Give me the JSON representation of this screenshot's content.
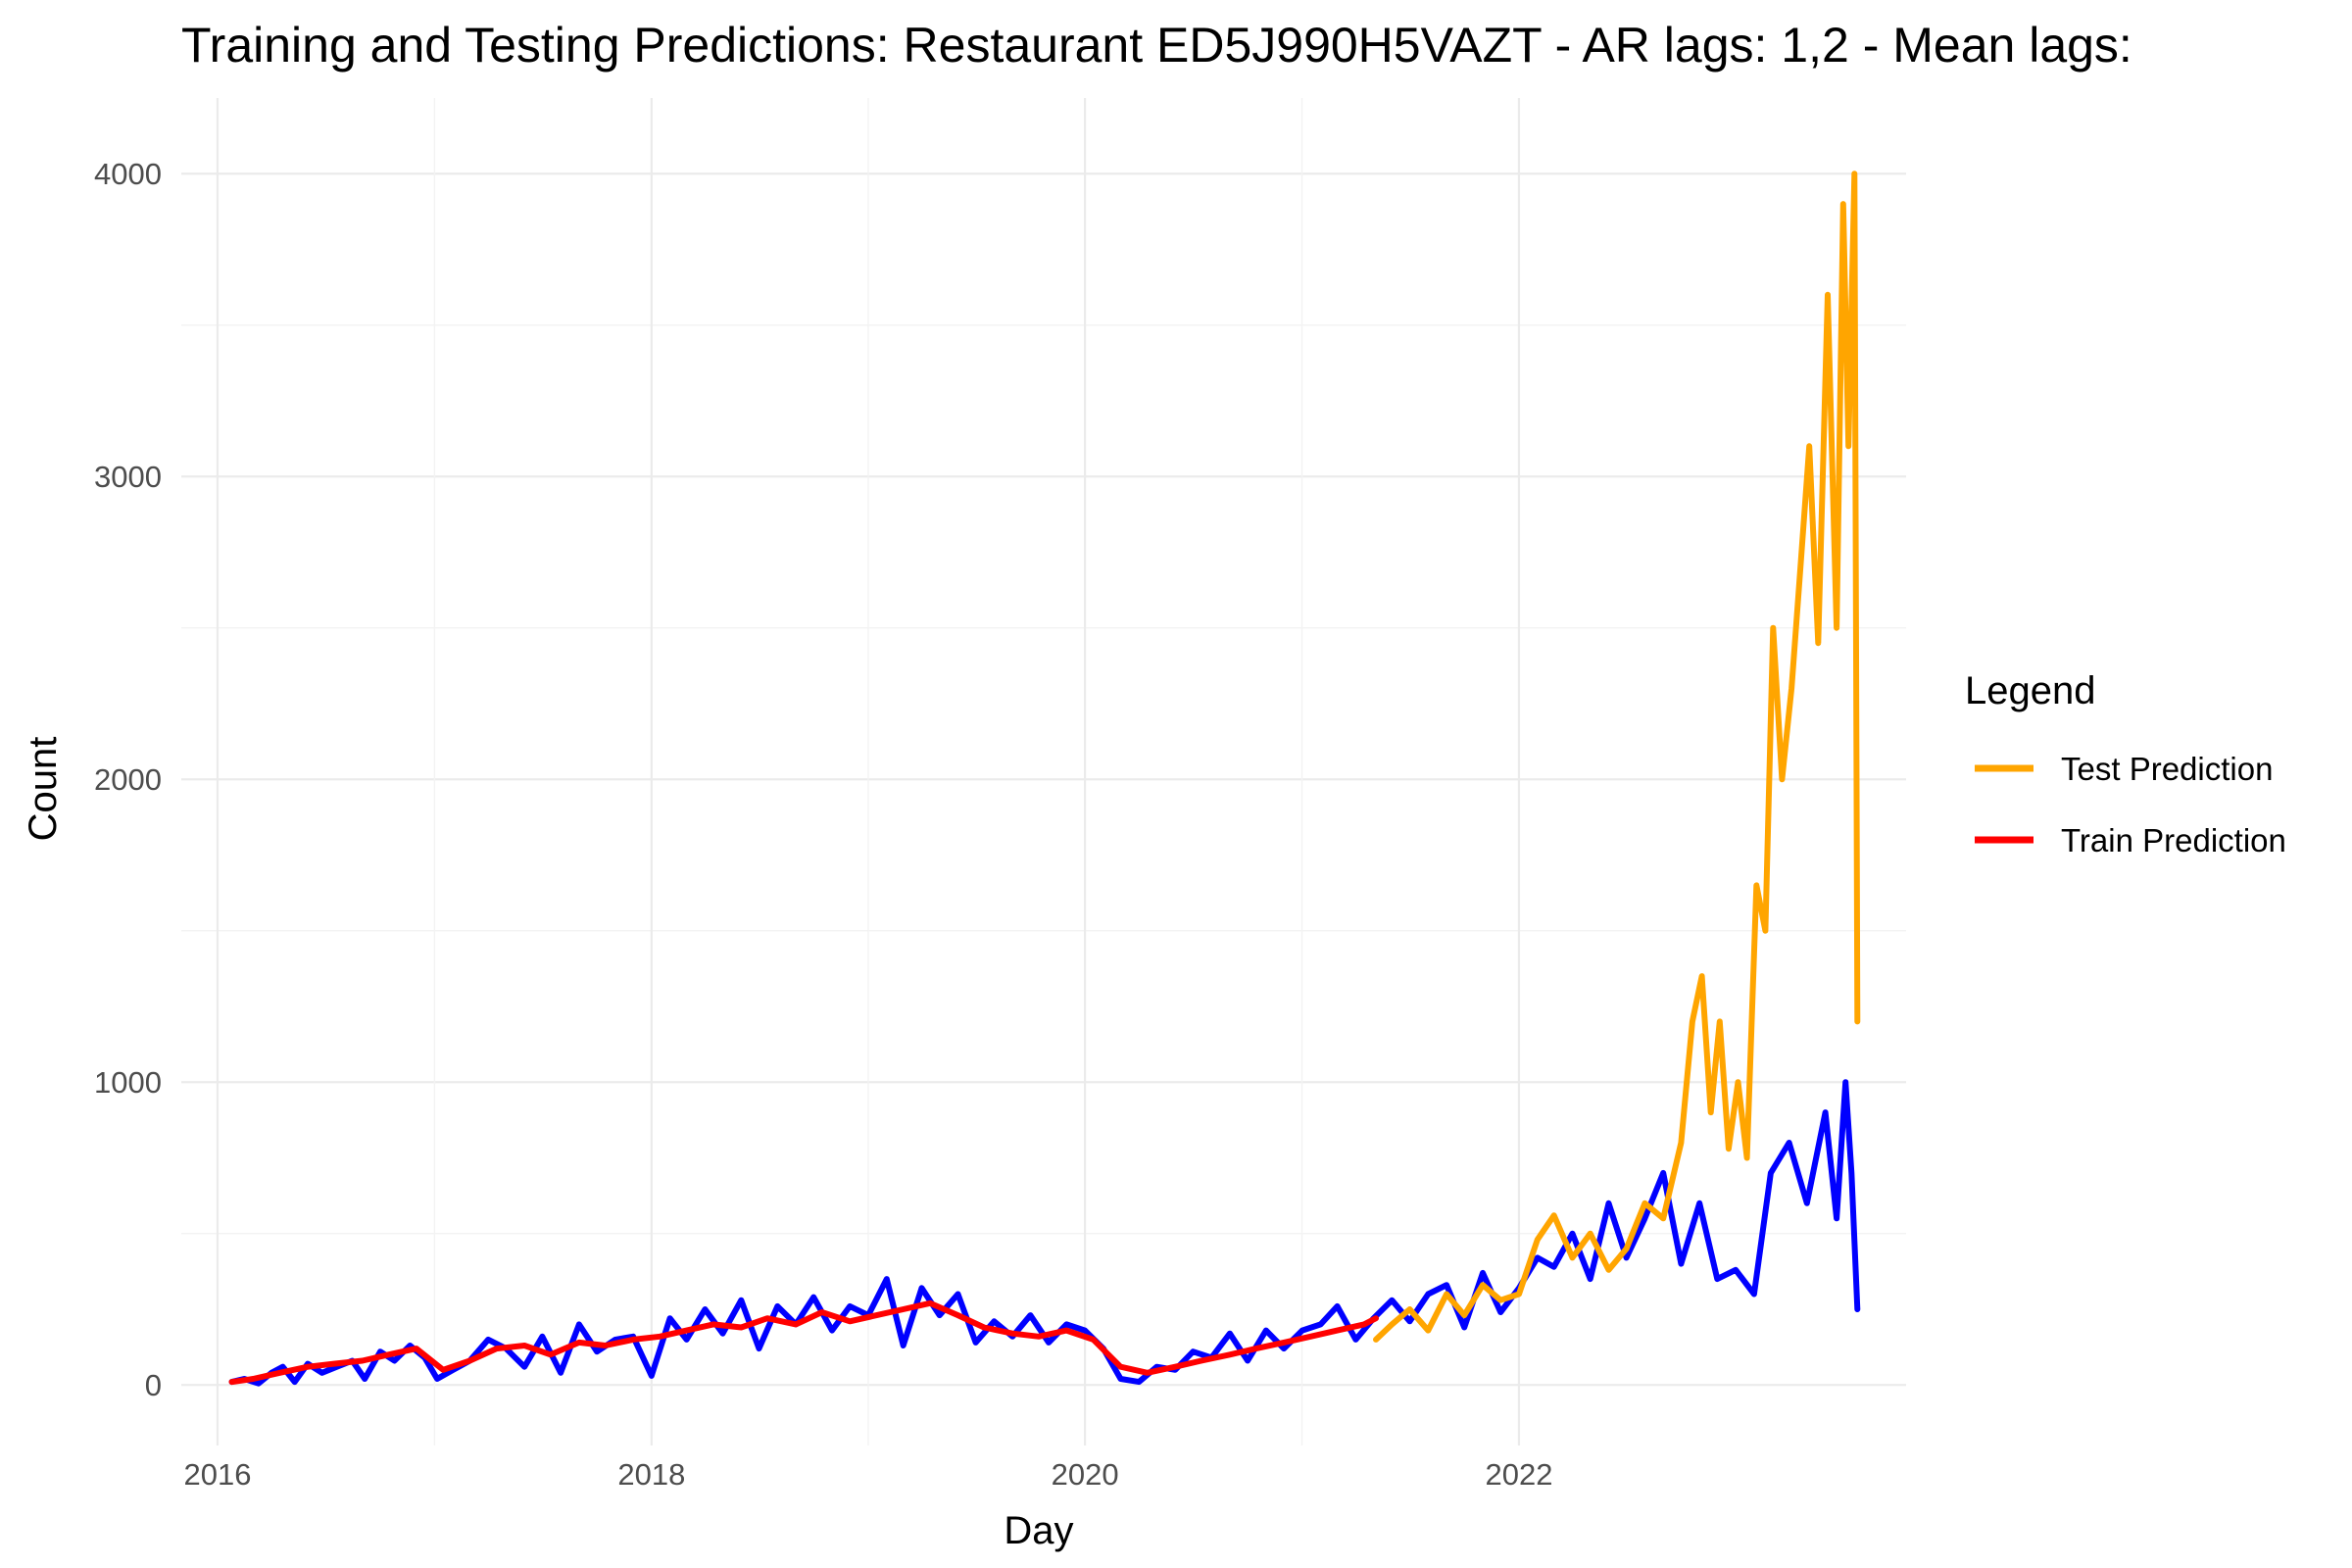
{
  "chart_data": {
    "type": "line",
    "title": "Training and Testing Predictions: Restaurant ED5J990H5VAZT - AR lags: 1,2 - Mean lags:",
    "xlabel": "Day",
    "ylabel": "Count",
    "xlim": [
      "2015-11-01",
      "2023-10-15"
    ],
    "ylim": [
      -200,
      4250
    ],
    "x_ticks": [
      "2016-01-01",
      "2018-01-01",
      "2020-01-01",
      "2022-01-01"
    ],
    "x_tick_labels": [
      "2016",
      "2018",
      "2020",
      "2022"
    ],
    "y_ticks": [
      0,
      1000,
      2000,
      3000,
      4000
    ],
    "y_tick_labels": [
      "0",
      "1000",
      "2000",
      "3000",
      "4000"
    ],
    "grid": true,
    "legend": {
      "title": "Legend",
      "placement": "right",
      "entries": [
        {
          "label": "Test Prediction",
          "color": "#FFA500"
        },
        {
          "label": "Train Prediction",
          "color": "#FF0000"
        }
      ]
    },
    "series": [
      {
        "color": "#0000FF",
        "x": [
          "2016-01-25",
          "2016-02-15",
          "2016-03-10",
          "2016-04-01",
          "2016-04-20",
          "2016-05-10",
          "2016-06-01",
          "2016-06-25",
          "2016-07-20",
          "2016-08-15",
          "2016-09-05",
          "2016-10-01",
          "2016-10-25",
          "2016-11-20",
          "2016-12-15",
          "2017-01-05",
          "2017-02-01",
          "2017-03-01",
          "2017-04-01",
          "2017-05-01",
          "2017-06-01",
          "2017-07-01",
          "2017-08-01",
          "2017-09-01",
          "2017-10-01",
          "2017-11-01",
          "2017-12-01",
          "2018-01-01",
          "2018-02-01",
          "2018-03-01",
          "2018-04-01",
          "2018-05-01",
          "2018-06-01",
          "2018-07-01",
          "2018-08-01",
          "2018-09-01",
          "2018-10-01",
          "2018-11-01",
          "2018-12-01",
          "2019-01-01",
          "2019-02-01",
          "2019-03-01",
          "2019-04-01",
          "2019-05-01",
          "2019-06-01",
          "2019-07-01",
          "2019-08-01",
          "2019-09-01",
          "2019-10-01",
          "2019-11-01",
          "2019-12-01",
          "2020-01-01",
          "2020-02-01",
          "2020-03-01",
          "2020-04-01",
          "2020-05-01",
          "2020-06-01",
          "2020-07-01",
          "2020-08-01",
          "2020-09-01",
          "2020-10-01",
          "2020-11-01",
          "2020-12-01",
          "2021-01-01",
          "2021-02-01",
          "2021-03-01",
          "2021-04-01",
          "2021-05-01",
          "2021-06-01",
          "2021-07-01",
          "2021-08-01",
          "2021-09-01",
          "2021-10-01",
          "2021-11-01",
          "2021-12-01",
          "2022-01-01",
          "2022-02-01",
          "2022-03-01",
          "2022-04-01",
          "2022-05-01",
          "2022-06-01",
          "2022-07-01",
          "2022-08-01",
          "2022-09-01",
          "2022-10-01",
          "2022-11-01",
          "2022-12-01",
          "2023-01-01",
          "2023-02-01",
          "2023-03-01",
          "2023-04-01",
          "2023-05-01",
          "2023-06-01",
          "2023-06-20",
          "2023-07-05",
          "2023-07-15",
          "2023-07-25"
        ],
        "values": [
          10,
          20,
          5,
          40,
          60,
          10,
          70,
          40,
          60,
          80,
          20,
          110,
          80,
          130,
          90,
          20,
          50,
          80,
          150,
          120,
          60,
          160,
          40,
          200,
          110,
          150,
          160,
          30,
          220,
          150,
          250,
          170,
          280,
          120,
          260,
          200,
          290,
          180,
          260,
          230,
          350,
          130,
          320,
          230,
          300,
          140,
          210,
          160,
          230,
          140,
          200,
          180,
          120,
          20,
          10,
          60,
          50,
          110,
          90,
          170,
          80,
          180,
          120,
          180,
          200,
          260,
          150,
          220,
          280,
          210,
          300,
          330,
          190,
          370,
          240,
          320,
          420,
          390,
          500,
          350,
          600,
          420,
          550,
          700,
          400,
          600,
          350,
          380,
          300,
          700,
          800,
          600,
          900,
          550,
          1000,
          700,
          250
        ]
      },
      {
        "name": "Train Prediction",
        "color": "#FF0000",
        "x": [
          "2016-01-25",
          "2016-03-01",
          "2016-04-15",
          "2016-06-01",
          "2016-07-15",
          "2016-09-01",
          "2016-10-15",
          "2016-12-01",
          "2017-01-15",
          "2017-03-01",
          "2017-04-15",
          "2017-06-01",
          "2017-07-15",
          "2017-09-01",
          "2017-10-15",
          "2017-12-01",
          "2018-01-15",
          "2018-03-01",
          "2018-04-15",
          "2018-06-01",
          "2018-07-15",
          "2018-09-01",
          "2018-10-15",
          "2018-12-01",
          "2019-01-15",
          "2019-03-01",
          "2019-04-15",
          "2019-06-01",
          "2019-07-15",
          "2019-09-01",
          "2019-10-15",
          "2019-12-01",
          "2020-01-15",
          "2020-03-01",
          "2020-04-15",
          "2020-06-01",
          "2020-07-15",
          "2020-09-01",
          "2020-10-15",
          "2020-12-01",
          "2021-01-15",
          "2021-03-01",
          "2021-04-15",
          "2021-05-05"
        ],
        "values": [
          10,
          20,
          40,
          60,
          70,
          80,
          100,
          120,
          50,
          80,
          120,
          130,
          100,
          140,
          130,
          150,
          160,
          180,
          200,
          190,
          220,
          200,
          240,
          210,
          230,
          250,
          270,
          230,
          190,
          170,
          160,
          180,
          150,
          60,
          40,
          60,
          80,
          100,
          120,
          140,
          160,
          180,
          200,
          220
        ]
      },
      {
        "name": "Test Prediction",
        "color": "#FFA500",
        "x": [
          "2021-05-05",
          "2021-06-01",
          "2021-07-01",
          "2021-08-01",
          "2021-09-01",
          "2021-10-01",
          "2021-11-01",
          "2021-12-01",
          "2022-01-01",
          "2022-02-01",
          "2022-03-01",
          "2022-04-01",
          "2022-05-01",
          "2022-06-01",
          "2022-07-01",
          "2022-08-01",
          "2022-09-01",
          "2022-10-01",
          "2022-10-20",
          "2022-11-05",
          "2022-11-20",
          "2022-12-05",
          "2022-12-20",
          "2023-01-05",
          "2023-01-20",
          "2023-02-05",
          "2023-02-20",
          "2023-03-05",
          "2023-03-20",
          "2023-04-05",
          "2023-04-20",
          "2023-05-05",
          "2023-05-20",
          "2023-06-05",
          "2023-06-20",
          "2023-07-01",
          "2023-07-10",
          "2023-07-20",
          "2023-07-25"
        ],
        "values": [
          150,
          200,
          250,
          180,
          300,
          230,
          330,
          280,
          300,
          480,
          560,
          420,
          500,
          380,
          450,
          600,
          550,
          800,
          1200,
          1350,
          900,
          1200,
          780,
          1000,
          750,
          1650,
          1500,
          2500,
          2000,
          2300,
          2700,
          3100,
          2450,
          3600,
          2500,
          3900,
          3100,
          4000,
          1200
        ]
      }
    ]
  }
}
